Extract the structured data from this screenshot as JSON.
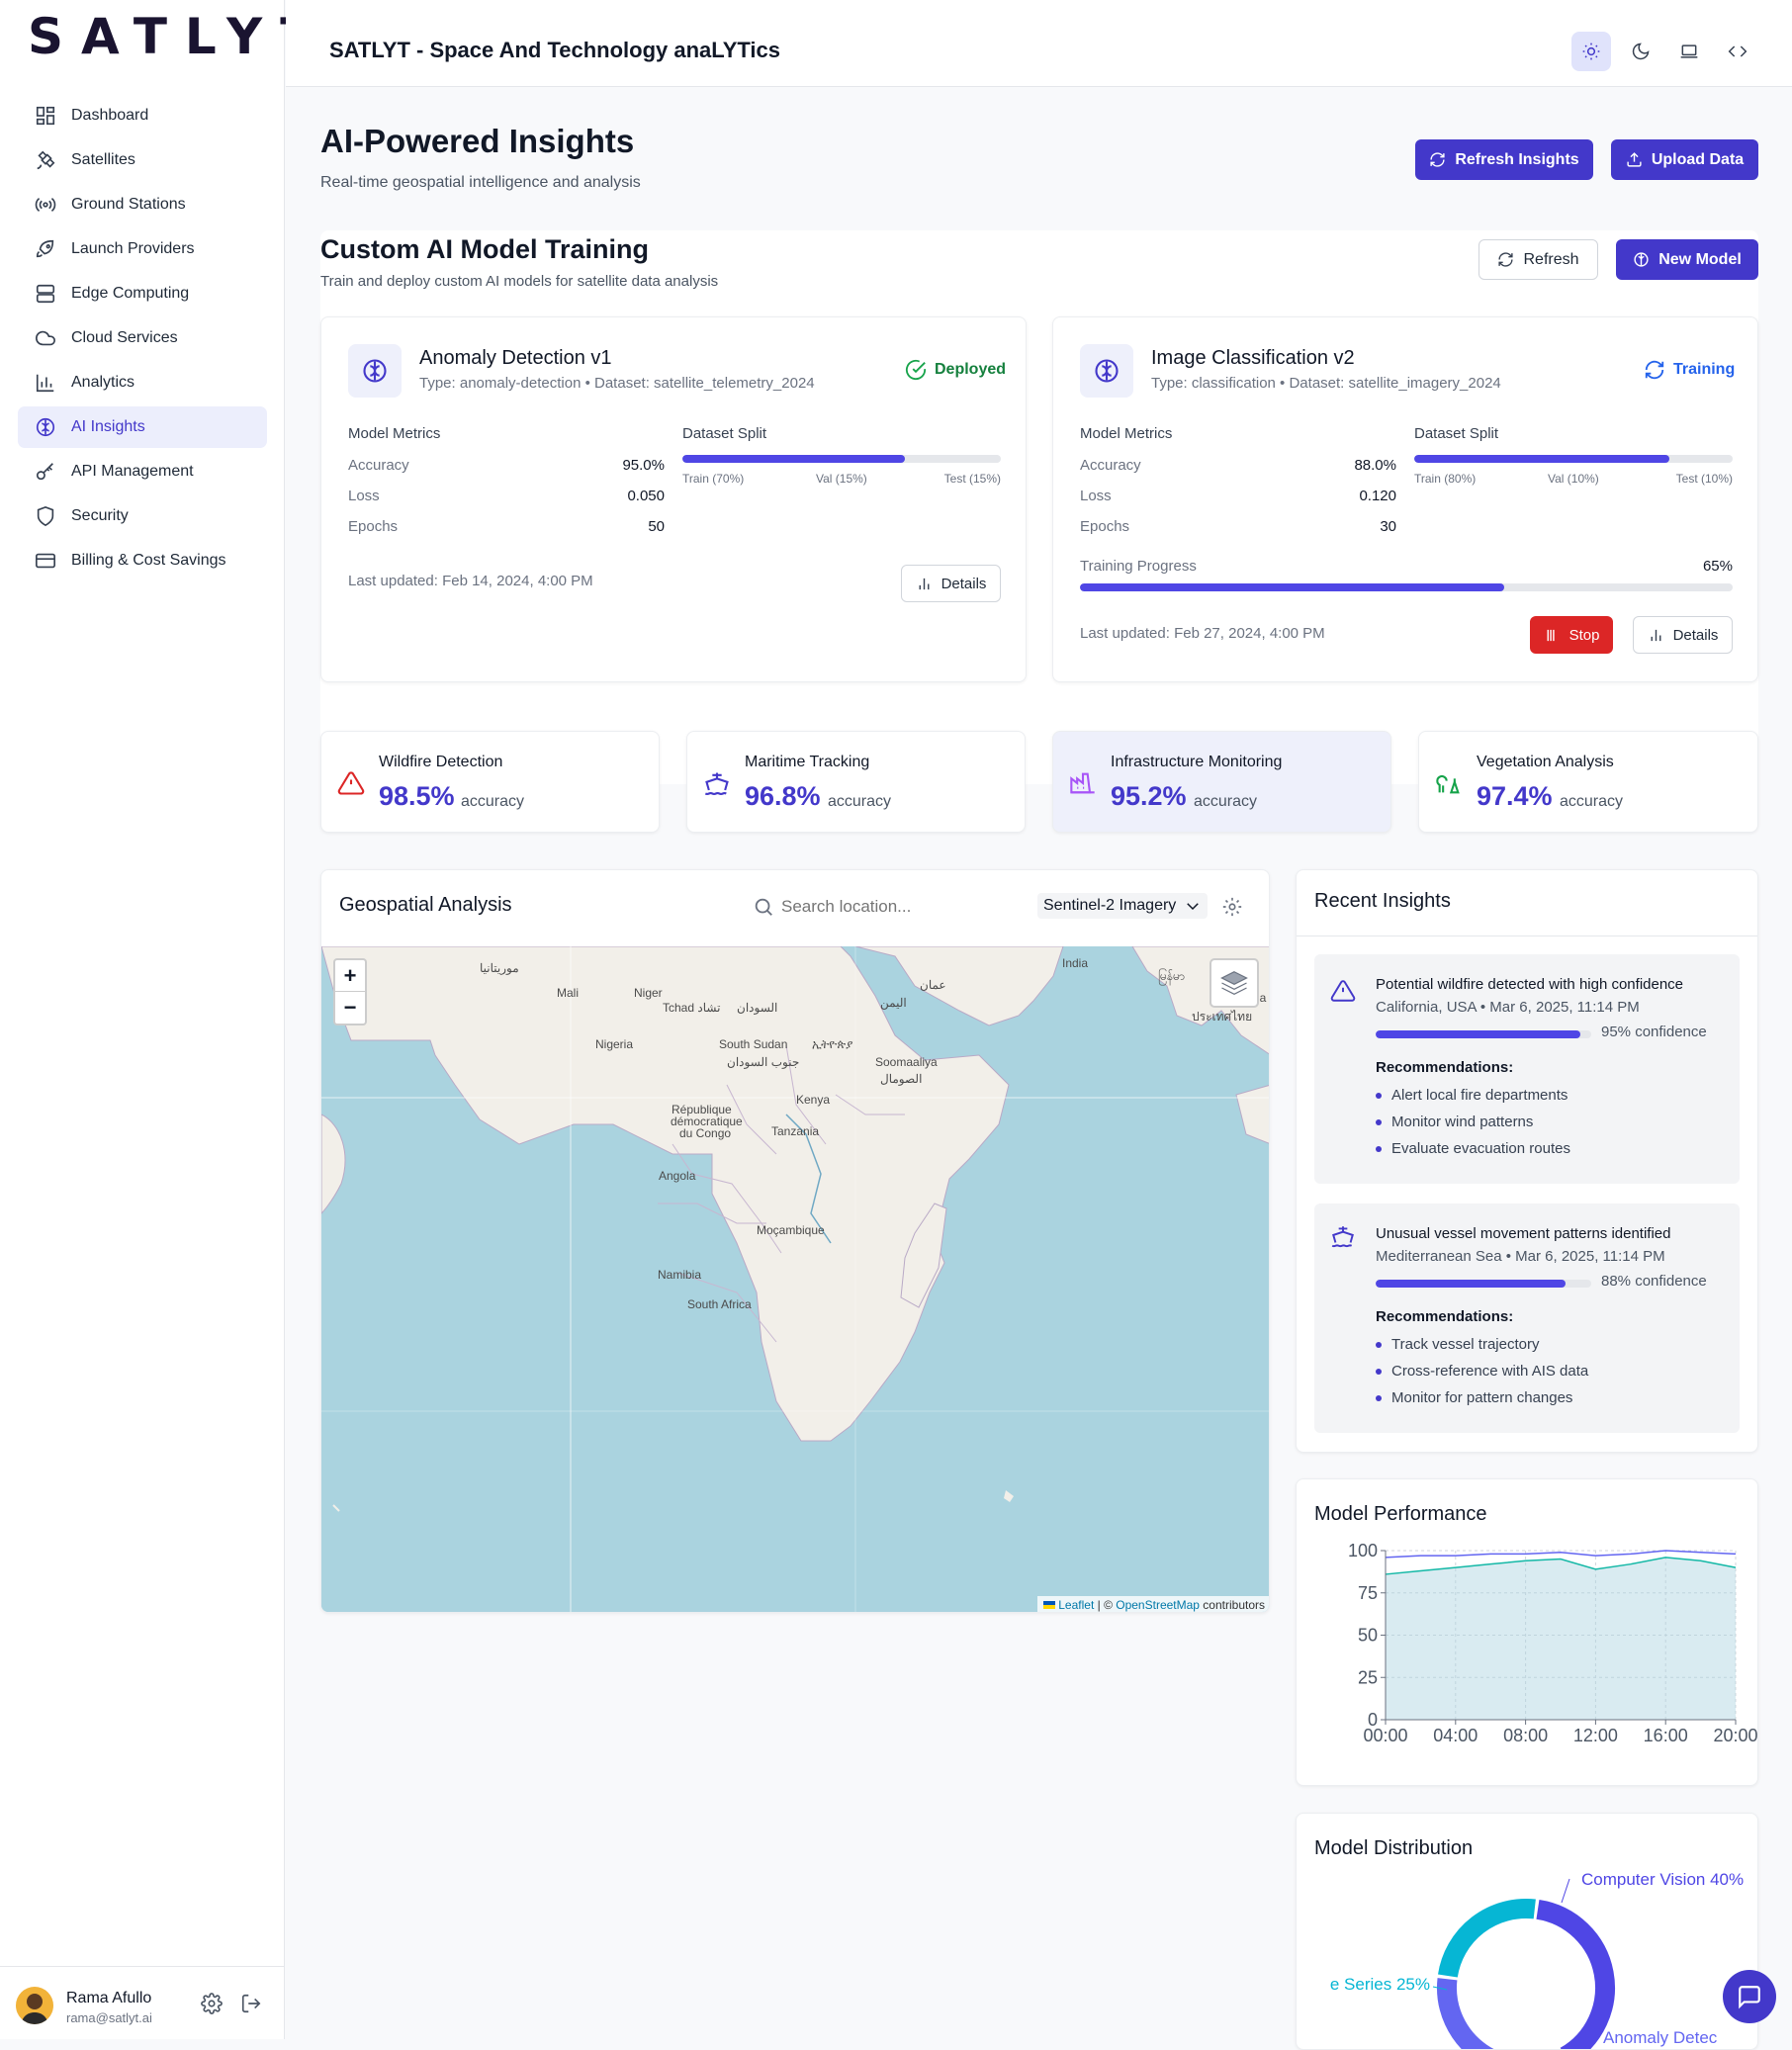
{
  "brand": {
    "logo": "SATLYT",
    "app_title": "SATLYT - Space And Technology anaLYTics"
  },
  "sidebar": {
    "items": [
      {
        "label": "Dashboard",
        "icon": "dashboard-icon"
      },
      {
        "label": "Satellites",
        "icon": "satellite-icon"
      },
      {
        "label": "Ground Stations",
        "icon": "radio-tower-icon"
      },
      {
        "label": "Launch Providers",
        "icon": "rocket-icon"
      },
      {
        "label": "Edge Computing",
        "icon": "server-icon"
      },
      {
        "label": "Cloud Services",
        "icon": "cloud-icon"
      },
      {
        "label": "Analytics",
        "icon": "bar-chart-icon"
      },
      {
        "label": "AI Insights",
        "icon": "brain-icon",
        "active": true
      },
      {
        "label": "API Management",
        "icon": "key-icon"
      },
      {
        "label": "Security",
        "icon": "shield-icon"
      },
      {
        "label": "Billing & Cost Savings",
        "icon": "credit-card-icon"
      }
    ]
  },
  "user": {
    "name": "Rama Afullo",
    "email": "rama@satlyt.ai"
  },
  "header": {
    "title": "AI-Powered Insights",
    "subtitle": "Real-time geospatial intelligence and analysis",
    "refresh_label": "Refresh Insights",
    "upload_label": "Upload Data"
  },
  "training": {
    "title": "Custom AI Model Training",
    "subtitle": "Train and deploy custom AI models for satellite data analysis",
    "refresh_label": "Refresh",
    "new_label": "New Model",
    "metrics_heading": "Model Metrics",
    "split_heading": "Dataset Split",
    "accuracy_label": "Accuracy",
    "loss_label": "Loss",
    "epochs_label": "Epochs",
    "details_label": "Details",
    "stop_label": "Stop",
    "progress_label": "Training Progress",
    "models": [
      {
        "name": "Anomaly Detection v1",
        "meta": "Type: anomaly-detection • Dataset: satellite_telemetry_2024",
        "status": "Deployed",
        "accuracy": "95.0%",
        "loss": "0.050",
        "epochs": "50",
        "split_train": "Train (70%)",
        "split_val": "Val (15%)",
        "split_test": "Test (15%)",
        "train_fraction": 0.7,
        "updated": "Last updated: Feb 14, 2024, 4:00 PM"
      },
      {
        "name": "Image Classification v2",
        "meta": "Type: classification • Dataset: satellite_imagery_2024",
        "status": "Training",
        "accuracy": "88.0%",
        "loss": "0.120",
        "epochs": "30",
        "split_train": "Train (80%)",
        "split_val": "Val (10%)",
        "split_test": "Test (10%)",
        "train_fraction": 0.8,
        "progress": "65%",
        "progress_fraction": 0.65,
        "updated": "Last updated: Feb 27, 2024, 4:00 PM"
      }
    ]
  },
  "stats": [
    {
      "title": "Wildfire Detection",
      "value": "98.5%",
      "unit": "accuracy",
      "icon": "alert-triangle-icon",
      "color": "#dc2626"
    },
    {
      "title": "Maritime Tracking",
      "value": "96.8%",
      "unit": "accuracy",
      "icon": "ship-icon",
      "color": "#4338ca"
    },
    {
      "title": "Infrastructure Monitoring",
      "value": "95.2%",
      "unit": "accuracy",
      "icon": "factory-icon",
      "color": "#a855f7"
    },
    {
      "title": "Vegetation Analysis",
      "value": "97.4%",
      "unit": "accuracy",
      "icon": "trees-icon",
      "color": "#16a34a"
    }
  ],
  "geo": {
    "title": "Geospatial Analysis",
    "search_placeholder": "Search location...",
    "imagery": "Sentinel-2 Imagery",
    "zoom_in": "+",
    "zoom_out": "−",
    "attribution_leaflet": "Leaflet",
    "attribution_sep": " | © ",
    "attribution_osm": "OpenStreetMap",
    "attribution_tail": " contributors",
    "places": [
      "Mali",
      "Niger",
      "Tchad تشاد",
      "السودان",
      "اليمن",
      "India",
      "Nigeria",
      "South Sudan",
      "ኢትዮጵያ",
      "جنوب السودان",
      "Soomaaliya",
      "الصومال",
      "République",
      "démocratique",
      "du Congo",
      "Kenya",
      "Tanzania",
      "Angola",
      "Moçambique",
      "Namibia",
      "South Africa",
      "موريتانيا",
      "عمان",
      "ประเทศไทย",
      "မြန်မာ",
      "Na"
    ]
  },
  "insights": {
    "title": "Recent Insights",
    "rec_heading": "Recommendations:",
    "items": [
      {
        "title": "Potential wildfire detected with high confidence",
        "meta": "California, USA • Mar 6, 2025, 11:14 PM",
        "confidence": "95% confidence",
        "confidence_fraction": 0.95,
        "icon": "alert-triangle-icon",
        "recs": [
          "Alert local fire departments",
          "Monitor wind patterns",
          "Evaluate evacuation routes"
        ]
      },
      {
        "title": "Unusual vessel movement patterns identified",
        "meta": "Mediterranean Sea • Mar 6, 2025, 11:14 PM",
        "confidence": "88% confidence",
        "confidence_fraction": 0.88,
        "icon": "ship-icon",
        "recs": [
          "Track vessel trajectory",
          "Cross-reference with AIS data",
          "Monitor for pattern changes"
        ]
      }
    ]
  },
  "performance": {
    "title": "Model Performance"
  },
  "distribution": {
    "title": "Model Distribution"
  },
  "chart_data": [
    {
      "type": "area",
      "x": [
        "00:00",
        "02:00",
        "04:00",
        "06:00",
        "08:00",
        "10:00",
        "12:00",
        "14:00",
        "16:00",
        "18:00",
        "20:00"
      ],
      "series": [
        {
          "values": [
            96,
            97,
            97,
            98,
            98,
            99,
            97,
            98,
            100,
            99,
            98
          ]
        },
        {
          "values": [
            86,
            88,
            90,
            92,
            94,
            95,
            89,
            92,
            96,
            94,
            90
          ]
        }
      ],
      "xticks": [
        "00:00",
        "04:00",
        "08:00",
        "12:00",
        "16:00",
        "20:00"
      ],
      "yticks": [
        "0",
        "25",
        "50",
        "75",
        "100"
      ],
      "ylim": [
        0,
        100
      ],
      "grid": true
    },
    {
      "type": "pie",
      "slices": [
        {
          "label": "Computer Vision 40%",
          "value": 40,
          "color": "#4f46e5"
        },
        {
          "label": "Anomaly Detec",
          "value": 35,
          "color": "#6366f1"
        },
        {
          "label": "e Series 25%",
          "value": 25,
          "color": "#06b6d4"
        }
      ]
    }
  ]
}
